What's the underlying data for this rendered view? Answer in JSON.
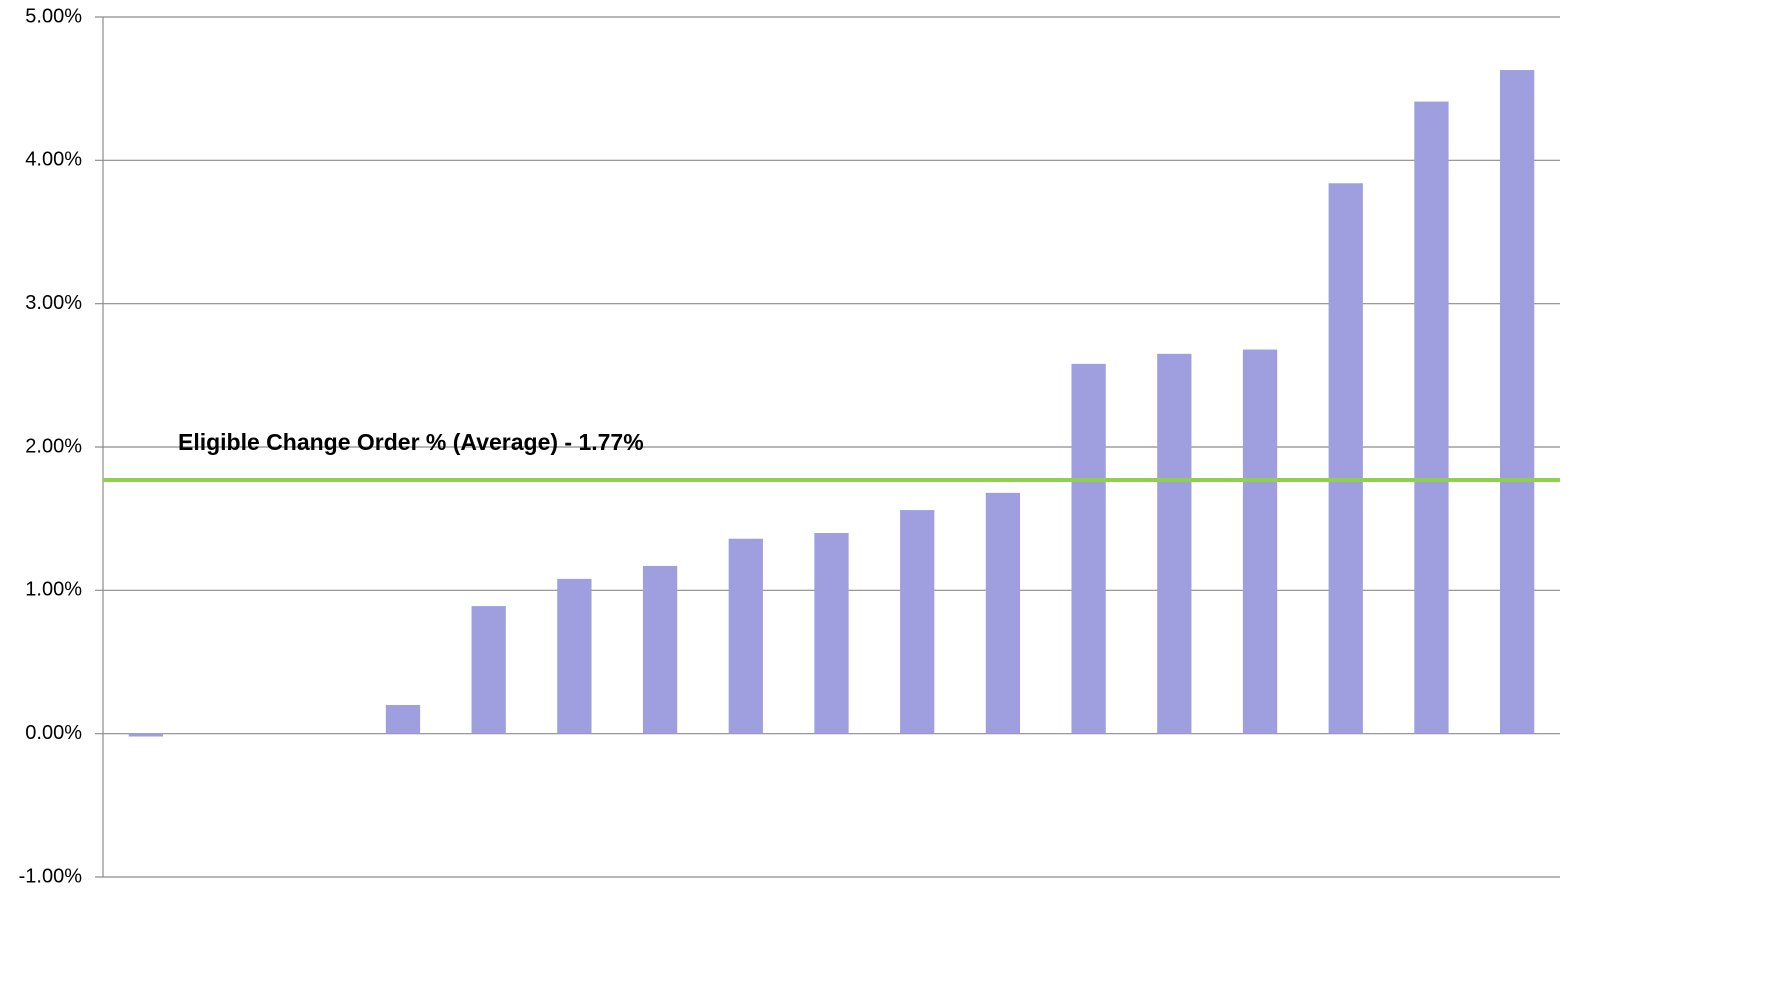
{
  "chart_data": {
    "type": "bar",
    "categories": [
      null,
      null,
      null,
      null,
      null,
      null,
      null,
      null,
      null,
      null,
      null,
      null,
      null,
      null,
      null,
      null,
      null
    ],
    "values": [
      -0.02,
      0,
      0,
      0.2,
      0.89,
      1.08,
      1.17,
      1.36,
      1.4,
      1.56,
      1.68,
      2.58,
      2.65,
      2.68,
      3.84,
      4.41,
      4.63
    ],
    "color": "#9f9fdf",
    "ylim": [
      -1,
      5
    ],
    "yticks": [
      {
        "value": -1,
        "label": "-1.00%"
      },
      {
        "value": 0,
        "label": "0.00%"
      },
      {
        "value": 1,
        "label": "1.00%"
      },
      {
        "value": 2,
        "label": "2.00%"
      },
      {
        "value": 3,
        "label": "3.00%"
      },
      {
        "value": 4,
        "label": "4.00%"
      },
      {
        "value": 5,
        "label": "5.00%"
      }
    ],
    "grid": true,
    "reference_line": {
      "value": 1.77,
      "label": "Eligible Change Order % (Average) - 1.77%",
      "color": "#8fd14f"
    }
  }
}
